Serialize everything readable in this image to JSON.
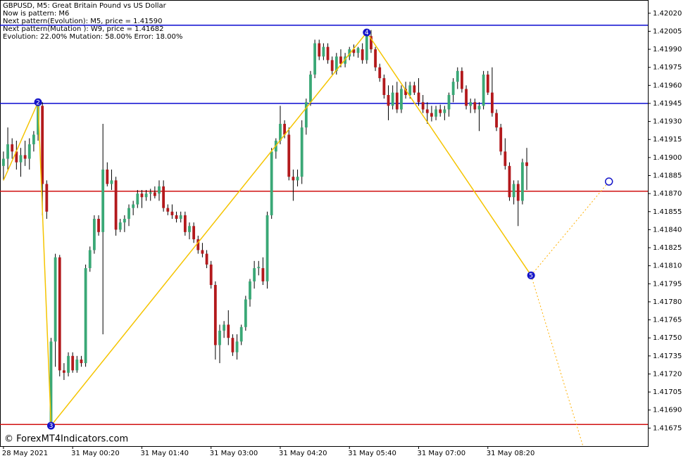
{
  "chart_data": {
    "type": "candlestick",
    "title": "GBPUSD, M5:  Great Britain Pound vs US Dollar",
    "info": [
      "Now is pattern: M6",
      "Next pattern(Evolution): M5, price = 1.41590",
      "Next pattern(Mutation ): W9, price = 1.41682",
      "Evolution: 22.00% Mutation: 58.00% Error: 18.00%"
    ],
    "watermark": "© ForexMT4Indicators.com",
    "up_color": "#3aa876",
    "down_color": "#b3191c",
    "categories": [
      "28 May 2021",
      null,
      null,
      null,
      null,
      null,
      null,
      null,
      null,
      null,
      null,
      null,
      null,
      null,
      null,
      null,
      "31 May 00:20",
      null,
      null,
      null,
      null,
      null,
      null,
      null,
      null,
      null,
      null,
      null,
      null,
      null,
      null,
      null,
      "31 May 01:40",
      null,
      null,
      null,
      null,
      null,
      null,
      null,
      null,
      null,
      null,
      null,
      null,
      null,
      null,
      null,
      "31 May 03:00",
      null,
      null,
      null,
      null,
      null,
      null,
      null,
      null,
      null,
      null,
      null,
      null,
      null,
      null,
      null,
      "31 May 04:20",
      null,
      null,
      null,
      null,
      null,
      null,
      null,
      null,
      null,
      null,
      null,
      null,
      null,
      null,
      null,
      "31 May 05:40",
      null,
      null,
      null,
      null,
      null,
      null,
      null,
      null,
      null,
      null,
      null,
      null,
      null,
      null,
      null,
      "31 May 07:00",
      null,
      null,
      null,
      null,
      null,
      null,
      null,
      null,
      null,
      null,
      null,
      null,
      null,
      null,
      null,
      "31 May 08:20",
      null,
      null,
      null,
      null,
      null,
      null,
      null,
      null,
      null
    ],
    "open": [
      1.41893,
      1.41899,
      1.41911,
      1.41905,
      1.41896,
      1.41902,
      1.41899,
      1.41911,
      1.41919,
      1.41943,
      1.41878,
      1.4168,
      1.41747,
      1.41817,
      1.41723,
      1.41721,
      1.41735,
      1.41723,
      1.41732,
      1.41729,
      1.41808,
      1.41823,
      1.41849,
      1.41838,
      1.4189,
      1.41878,
      1.41881,
      1.4184,
      1.41846,
      1.41849,
      1.41858,
      1.41861,
      1.4187,
      1.41867,
      1.4187,
      1.41871,
      1.4187,
      1.41876,
      1.41858,
      1.41855,
      1.41852,
      1.41849,
      1.41852,
      1.41838,
      1.41843,
      1.41832,
      1.41823,
      1.4182,
      1.41811,
      1.41794,
      1.41744,
      1.41756,
      1.41761,
      1.4175,
      1.41738,
      1.41747,
      1.41759,
      1.41782,
      1.41797,
      1.41808,
      1.41808,
      1.41797,
      1.41852,
      1.41905,
      1.41914,
      1.41928,
      1.41919,
      1.41884,
      1.41881,
      1.41884,
      1.41925,
      1.41946,
      1.41969,
      1.41995,
      1.41984,
      1.41992,
      1.41981,
      1.41972,
      1.41984,
      1.41978,
      1.41984,
      1.4199,
      1.41987,
      1.4199,
      1.41981,
      1.42001,
      1.4199,
      1.41975,
      1.41966,
      1.41952,
      1.41943,
      1.41954,
      1.4194,
      1.41957,
      1.41952,
      1.4196,
      1.41954,
      1.41946,
      1.4194,
      1.41937,
      1.41934,
      1.4194,
      1.41937,
      1.4194,
      1.41952,
      1.41963,
      1.41972,
      1.41957,
      1.41943,
      1.41946,
      1.4194,
      1.41943,
      1.41969,
      1.41954,
      1.41937,
      1.41925,
      1.41905,
      1.41893,
      1.41867,
      1.41878,
      1.41864,
      1.41896
    ],
    "high": [
      1.41905,
      1.41925,
      1.41916,
      1.41914,
      1.41908,
      1.41914,
      1.41916,
      1.41922,
      1.41946,
      1.41946,
      1.41881,
      1.4175,
      1.4182,
      1.41819,
      1.41729,
      1.41738,
      1.41738,
      1.41735,
      1.41735,
      1.41811,
      1.41826,
      1.41852,
      1.41852,
      1.41928,
      1.41896,
      1.4189,
      1.41884,
      1.41849,
      1.41852,
      1.41861,
      1.41864,
      1.41873,
      1.41873,
      1.41873,
      1.41874,
      1.41876,
      1.41881,
      1.41881,
      1.41861,
      1.41861,
      1.41855,
      1.41855,
      1.41855,
      1.41846,
      1.41846,
      1.41835,
      1.41829,
      1.41823,
      1.41814,
      1.41797,
      1.41761,
      1.41764,
      1.41773,
      1.41753,
      1.41753,
      1.41761,
      1.41785,
      1.41799,
      1.41814,
      1.41814,
      1.41817,
      1.41855,
      1.41908,
      1.41916,
      1.41943,
      1.41931,
      1.41925,
      1.4189,
      1.4189,
      1.41931,
      1.41949,
      1.41972,
      1.41998,
      1.41998,
      1.41995,
      1.41995,
      1.41984,
      1.41987,
      1.4199,
      1.41987,
      1.41992,
      1.41994,
      1.41992,
      1.41995,
      1.42004,
      1.42006,
      1.41992,
      1.41978,
      1.41969,
      1.4196,
      1.4196,
      1.41963,
      1.4196,
      1.41963,
      1.41963,
      1.41963,
      1.41966,
      1.41952,
      1.41946,
      1.41943,
      1.41943,
      1.41944,
      1.41943,
      1.41954,
      1.41966,
      1.41975,
      1.41975,
      1.4196,
      1.41949,
      1.41949,
      1.41946,
      1.41972,
      1.41972,
      1.41975,
      1.4194,
      1.41928,
      1.41916,
      1.41896,
      1.41881,
      1.41881,
      1.41899,
      1.41908
    ],
    "low": [
      1.41881,
      1.4189,
      1.41899,
      1.4189,
      1.41884,
      1.41893,
      1.4189,
      1.41905,
      1.41914,
      1.41852,
      1.41849,
      1.41677,
      1.41726,
      1.41718,
      1.41715,
      1.41718,
      1.41721,
      1.41721,
      1.41726,
      1.41726,
      1.41805,
      1.4182,
      1.41835,
      1.41753,
      1.41876,
      1.41873,
      1.41835,
      1.41838,
      1.41838,
      1.41843,
      1.41852,
      1.41858,
      1.41858,
      1.41864,
      1.41864,
      1.41866,
      1.41864,
      1.41855,
      1.41852,
      1.41849,
      1.41846,
      1.41846,
      1.41835,
      1.41832,
      1.41829,
      1.4182,
      1.41817,
      1.41808,
      1.41791,
      1.41732,
      1.41729,
      1.4175,
      1.41744,
      1.41735,
      1.41732,
      1.41744,
      1.41756,
      1.41776,
      1.41791,
      1.41802,
      1.41794,
      1.41791,
      1.41849,
      1.41899,
      1.41911,
      1.41916,
      1.41881,
      1.41864,
      1.41876,
      1.41878,
      1.41919,
      1.41943,
      1.41966,
      1.41981,
      1.41981,
      1.41978,
      1.41969,
      1.41969,
      1.41975,
      1.41975,
      1.41981,
      1.41984,
      1.41983,
      1.41978,
      1.41978,
      1.41987,
      1.41972,
      1.41963,
      1.41949,
      1.41931,
      1.4194,
      1.41937,
      1.41937,
      1.41949,
      1.41949,
      1.41952,
      1.41943,
      1.41937,
      1.41928,
      1.4193,
      1.41931,
      1.41934,
      1.41931,
      1.41934,
      1.41946,
      1.41957,
      1.41954,
      1.4194,
      1.41937,
      1.41937,
      1.41922,
      1.4194,
      1.41952,
      1.41934,
      1.41922,
      1.41902,
      1.4189,
      1.41864,
      1.41861,
      1.41843,
      1.41861,
      1.41873
    ],
    "close": [
      1.41899,
      1.41911,
      1.41905,
      1.41896,
      1.41902,
      1.41899,
      1.41911,
      1.41919,
      1.41943,
      1.41878,
      1.41855,
      1.41747,
      1.41817,
      1.41723,
      1.41721,
      1.41735,
      1.41723,
      1.41732,
      1.41729,
      1.41808,
      1.41823,
      1.41849,
      1.41838,
      1.4189,
      1.41878,
      1.41881,
      1.4184,
      1.41846,
      1.41849,
      1.41858,
      1.41861,
      1.4187,
      1.41867,
      1.4187,
      1.41871,
      1.41868,
      1.41876,
      1.41858,
      1.41855,
      1.41852,
      1.41849,
      1.41852,
      1.41838,
      1.41843,
      1.41832,
      1.41823,
      1.4182,
      1.41811,
      1.41794,
      1.41744,
      1.41756,
      1.41761,
      1.4175,
      1.41738,
      1.41747,
      1.41759,
      1.41782,
      1.41797,
      1.41808,
      1.41809,
      1.41797,
      1.41852,
      1.41905,
      1.41914,
      1.41928,
      1.41919,
      1.41884,
      1.41881,
      1.41884,
      1.41925,
      1.41946,
      1.41969,
      1.41995,
      1.41984,
      1.41992,
      1.41981,
      1.41972,
      1.41984,
      1.41978,
      1.41984,
      1.4199,
      1.41987,
      1.41991,
      1.41981,
      1.42001,
      1.4199,
      1.41975,
      1.41966,
      1.41952,
      1.41943,
      1.41954,
      1.4194,
      1.41957,
      1.41952,
      1.4196,
      1.41954,
      1.41946,
      1.4194,
      1.41937,
      1.41934,
      1.4194,
      1.41937,
      1.4194,
      1.41952,
      1.41963,
      1.41972,
      1.41957,
      1.41943,
      1.41946,
      1.4194,
      1.41943,
      1.41969,
      1.41954,
      1.41937,
      1.41925,
      1.41905,
      1.41893,
      1.41867,
      1.41878,
      1.41864,
      1.41896,
      1.41893
    ],
    "xlim": [
      -0.8,
      149
    ],
    "ylim": [
      1.4166,
      1.42031
    ],
    "yticks": [
      {
        "value": 1.4202,
        "label": "1.42020"
      },
      1.42005,
      {
        "value": 1.4199,
        "label": "1.41990"
      },
      1.41975,
      {
        "value": 1.4196,
        "label": "1.41960"
      },
      1.41945,
      {
        "value": 1.4193,
        "label": "1.41930"
      },
      1.41915,
      {
        "value": 1.419,
        "label": "1.41900"
      },
      1.41885,
      {
        "value": 1.4187,
        "label": "1.41870"
      },
      1.41855,
      {
        "value": 1.4184,
        "label": "1.41840"
      },
      1.41825,
      {
        "value": 1.4181,
        "label": "1.41810"
      },
      1.41795,
      {
        "value": 1.4178,
        "label": "1.41780"
      },
      1.41765,
      {
        "value": 1.4175,
        "label": "1.41750"
      },
      1.41735,
      {
        "value": 1.4172,
        "label": "1.41720"
      },
      1.41705,
      {
        "value": 1.4169,
        "label": "1.41690"
      },
      1.41675
    ],
    "levels": [
      {
        "value": 1.4201,
        "color": "#0a0ad0"
      },
      {
        "value": 1.41945,
        "color": "#0a0ad0"
      },
      {
        "value": 1.41872,
        "color": "#d01010"
      },
      {
        "value": 1.41678,
        "color": "#d01010"
      }
    ],
    "zigzag": {
      "color": "#f5c400",
      "marker_color": "#1414c8",
      "x": [
        0,
        8,
        11,
        84,
        122
      ],
      "values": [
        1.41881,
        1.41946,
        1.41677,
        1.42004,
        1.41802
      ],
      "labels": [
        null,
        "2",
        "3",
        "4",
        "5"
      ]
    },
    "forecast": [
      {
        "color": "#ffb000",
        "end_marker": true,
        "x": [
          122,
          140
        ],
        "values": [
          1.41802,
          1.4188
        ]
      },
      {
        "color": "#ffb000",
        "end_marker": false,
        "x": [
          122,
          134
        ],
        "values": [
          1.41802,
          1.4166
        ]
      }
    ]
  }
}
